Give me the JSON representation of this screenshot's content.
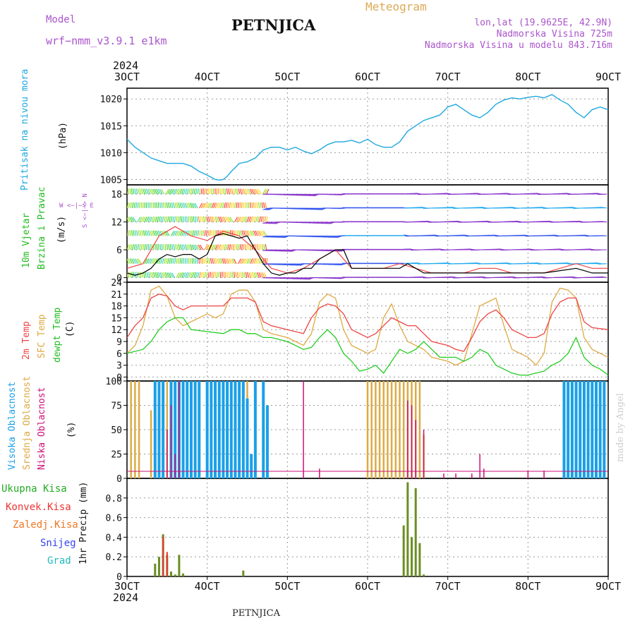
{
  "header": {
    "model_label": "Model",
    "model_name": "wrf−nmm_v3.9.1  e1km",
    "station": "PETNJICA",
    "title": "Meteogram",
    "lonlat": "lon,lat (19.9625E, 42.9N)",
    "altitude": "Nadmorska Visina 725m",
    "model_altitude": "Nadmorska Visina u modelu 843.716m",
    "year": "2024",
    "footer_station": "PETNJICA",
    "watermark": "made by Angel"
  },
  "colors": {
    "pressure": "#1fa8e0",
    "temp2m": "#ee4444",
    "sfc_temp": "#ddaa44",
    "dewpoint": "#22cc22",
    "high_cloud": "#1aa0e8",
    "mid_cloud": "#ddaa44",
    "low_cloud": "#cc1177",
    "total_precip": "#22aa22",
    "conv_precip": "#ee3333",
    "grid_precip": "#ee7722",
    "snow": "#3344ee",
    "graupel": "#22bbbb",
    "gust": "#ee4444",
    "wind_speed": "#000000",
    "magenta_label": "#aa55cc"
  },
  "panels": {
    "pressure": {
      "label": "Pritisak na nivou mora",
      "unit": "(hPa)"
    },
    "wind": {
      "label1": "10m Vjetar",
      "label2": "Brzina i Pravac",
      "unit": "(m/s)",
      "compass_we": "W <−|−> E",
      "compass_ns": "S <−|−> N"
    },
    "temp": {
      "label1": "2m Temp",
      "label2": "SFC Temp",
      "label3": "dewpt Temp",
      "unit": "(C)"
    },
    "cloud": {
      "label1": "Visoka Oblacnost",
      "label2": "Srednja Oblacnost",
      "label3": "Niska Oblacnost",
      "unit": "(%)"
    },
    "precip": {
      "legend": [
        "Ukupna Kisa",
        "Konvek.Kisa",
        "Zaledj.Kisa",
        "Snijeg",
        "Grad"
      ],
      "unit": "1hr Precip (mm)"
    }
  },
  "chart_data": [
    {
      "type": "line",
      "panel": "pressure",
      "xlabel": "",
      "ylabel": "Pritisak na nivou mora (hPa)",
      "x_ticks": [
        "3OCT",
        "4OCT",
        "5OCT",
        "6OCT",
        "7OCT",
        "8OCT",
        "9OCT"
      ],
      "xlim_days": [
        3,
        9
      ],
      "ylim": [
        1004,
        1022
      ],
      "y_ticks": [
        1005,
        1010,
        1015,
        1020
      ],
      "series": [
        {
          "name": "Pritisak na nivou mora",
          "x": [
            3.0,
            3.1,
            3.2,
            3.3,
            3.4,
            3.5,
            3.6,
            3.7,
            3.8,
            3.9,
            4.0,
            4.05,
            4.1,
            4.15,
            4.2,
            4.25,
            4.3,
            4.35,
            4.4,
            4.5,
            4.6,
            4.7,
            4.8,
            4.9,
            5.0,
            5.1,
            5.2,
            5.3,
            5.4,
            5.5,
            5.6,
            5.7,
            5.8,
            5.9,
            6.0,
            6.1,
            6.2,
            6.3,
            6.4,
            6.5,
            6.6,
            6.7,
            6.8,
            6.9,
            7.0,
            7.1,
            7.2,
            7.3,
            7.4,
            7.5,
            7.6,
            7.7,
            7.8,
            7.9,
            8.0,
            8.1,
            8.2,
            8.3,
            8.4,
            8.5,
            8.6,
            8.7,
            8.8,
            8.9,
            9.0
          ],
          "y": [
            1012.5,
            1011,
            1010,
            1009,
            1008.5,
            1008,
            1008,
            1008,
            1007.5,
            1006.5,
            1005.8,
            1005.4,
            1005,
            1004.9,
            1005,
            1005.6,
            1006.5,
            1007.2,
            1008,
            1008.3,
            1009,
            1010.5,
            1011,
            1011,
            1010.5,
            1011,
            1010.3,
            1009.8,
            1010.5,
            1011.5,
            1012,
            1012,
            1012.3,
            1011.8,
            1012.5,
            1011.5,
            1011,
            1011,
            1012,
            1014,
            1015,
            1016,
            1016.5,
            1017,
            1018.5,
            1019,
            1018,
            1017,
            1016.5,
            1017.5,
            1019,
            1019.8,
            1020.2,
            1020,
            1020.3,
            1020.5,
            1020.2,
            1020.8,
            1019.8,
            1019,
            1017.5,
            1016.5,
            1018,
            1018.5,
            1018
          ]
        }
      ]
    },
    {
      "type": "line",
      "panel": "wind",
      "ylabel": "10m Vjetar Brzina i Pravac (m/s)",
      "xlim_days": [
        3,
        9
      ],
      "ylim": [
        -1,
        20
      ],
      "y_ticks": [
        0,
        6,
        12,
        18
      ],
      "series": [
        {
          "name": "speed",
          "x": [
            3.0,
            3.1,
            3.2,
            3.3,
            3.4,
            3.5,
            3.6,
            3.7,
            3.8,
            3.9,
            4.0,
            4.1,
            4.2,
            4.3,
            4.4,
            4.5,
            4.6,
            4.7,
            4.8,
            4.9,
            5.0,
            5.1,
            5.2,
            5.3,
            5.4,
            5.5,
            5.6,
            5.7,
            5.8,
            6.0,
            6.2,
            6.4,
            6.5,
            6.6,
            6.7,
            6.8,
            7.0,
            7.2,
            7.4,
            7.6,
            7.8,
            8.0,
            8.2,
            8.4,
            8.6,
            8.7,
            8.8,
            9.0
          ],
          "y": [
            1,
            0.5,
            1,
            2,
            4,
            5,
            4.5,
            5,
            5,
            4,
            5,
            9,
            9.5,
            9,
            8.5,
            9,
            6,
            3,
            1,
            0.5,
            1,
            1,
            2,
            2,
            4,
            5,
            6,
            6,
            2,
            2,
            2,
            2,
            3,
            2,
            1,
            1,
            1,
            1,
            1,
            1,
            1,
            1,
            1,
            1.5,
            2,
            1.5,
            1,
            1
          ]
        },
        {
          "name": "gust",
          "x": [
            3.0,
            3.2,
            3.4,
            3.6,
            3.8,
            4.0,
            4.2,
            4.4,
            4.6,
            4.8,
            5.0,
            5.2,
            5.4,
            5.6,
            5.8,
            6.0,
            6.2,
            6.4,
            6.6,
            6.8,
            7.0,
            7.2,
            7.4,
            7.6,
            7.8,
            8.0,
            8.2,
            8.4,
            8.6,
            8.8,
            9.0
          ],
          "y": [
            2,
            3,
            9,
            11,
            9,
            8,
            10,
            9,
            6,
            2,
            1,
            2,
            4,
            6,
            2,
            2,
            2,
            3,
            2,
            1,
            1,
            1,
            2,
            2,
            1,
            1,
            1,
            2,
            3,
            2,
            2
          ]
        }
      ]
    },
    {
      "type": "line",
      "panel": "temperature",
      "ylabel": "(C)",
      "xlim_days": [
        3,
        9
      ],
      "ylim": [
        -1,
        24
      ],
      "y_ticks": [
        0,
        3,
        6,
        9,
        12,
        15,
        18,
        21,
        24
      ],
      "series": [
        {
          "name": "2m Temp",
          "x": [
            3.0,
            3.1,
            3.2,
            3.3,
            3.4,
            3.5,
            3.6,
            3.7,
            3.8,
            3.9,
            4.0,
            4.1,
            4.2,
            4.3,
            4.4,
            4.5,
            4.6,
            4.7,
            4.8,
            5.0,
            5.2,
            5.3,
            5.4,
            5.5,
            5.6,
            5.7,
            5.8,
            6.0,
            6.1,
            6.2,
            6.3,
            6.4,
            6.5,
            6.6,
            6.7,
            6.8,
            7.0,
            7.1,
            7.2,
            7.3,
            7.4,
            7.5,
            7.6,
            7.7,
            7.8,
            8.0,
            8.1,
            8.2,
            8.3,
            8.4,
            8.5,
            8.6,
            8.7,
            8.8,
            9.0
          ],
          "y": [
            10,
            13,
            15,
            20,
            21,
            20.5,
            18,
            17,
            18,
            18,
            18,
            18,
            18,
            20,
            20,
            20,
            19,
            14,
            13,
            12,
            11,
            15,
            17.5,
            18.5,
            18,
            16,
            12,
            10,
            11,
            13,
            15,
            14,
            13,
            13,
            11,
            9,
            8,
            7,
            6.5,
            10,
            14,
            16,
            17,
            15,
            12,
            10,
            10,
            11,
            16,
            19,
            20,
            20,
            14,
            12.5,
            12
          ]
        },
        {
          "name": "SFC Temp",
          "x": [
            3.0,
            3.1,
            3.2,
            3.3,
            3.4,
            3.5,
            3.6,
            3.7,
            3.8,
            3.9,
            4.0,
            4.1,
            4.2,
            4.3,
            4.4,
            4.5,
            4.6,
            4.7,
            4.8,
            5.0,
            5.2,
            5.3,
            5.4,
            5.5,
            5.6,
            5.7,
            5.8,
            6.0,
            6.1,
            6.2,
            6.3,
            6.4,
            6.5,
            6.6,
            6.7,
            6.8,
            7.0,
            7.1,
            7.2,
            7.3,
            7.4,
            7.5,
            7.6,
            7.7,
            7.8,
            8.0,
            8.1,
            8.2,
            8.3,
            8.4,
            8.5,
            8.6,
            8.7,
            8.8,
            9.0
          ],
          "y": [
            6,
            8,
            13,
            22,
            23,
            20.5,
            15,
            13,
            14,
            15,
            16,
            15,
            16,
            21,
            22,
            22,
            19,
            12,
            11,
            10,
            8,
            11,
            19,
            21,
            20,
            12,
            8,
            6,
            7,
            15,
            18.5,
            13,
            9,
            8,
            7,
            5,
            4,
            3,
            4,
            11,
            18,
            19,
            20,
            13,
            7,
            5,
            3,
            6,
            19,
            22.5,
            22,
            20,
            10,
            7,
            5
          ]
        },
        {
          "name": "dewpt Temp",
          "x": [
            3.0,
            3.2,
            3.3,
            3.4,
            3.5,
            3.6,
            3.7,
            3.8,
            4.0,
            4.2,
            4.3,
            4.4,
            4.5,
            4.6,
            4.7,
            4.8,
            5.0,
            5.1,
            5.2,
            5.3,
            5.4,
            5.5,
            5.6,
            5.7,
            5.8,
            5.9,
            6.0,
            6.1,
            6.2,
            6.3,
            6.4,
            6.5,
            6.6,
            6.7,
            6.8,
            6.9,
            7.0,
            7.1,
            7.2,
            7.3,
            7.4,
            7.5,
            7.6,
            7.7,
            7.8,
            7.9,
            8.0,
            8.1,
            8.2,
            8.3,
            8.4,
            8.5,
            8.6,
            8.7,
            8.8,
            8.9,
            9.0
          ],
          "y": [
            6,
            7,
            9,
            12,
            14,
            15,
            15,
            12,
            11.5,
            11,
            12,
            12,
            11,
            11,
            10,
            10,
            9,
            8,
            7,
            7.5,
            10,
            12,
            10,
            6,
            4,
            1.5,
            2,
            3,
            1,
            4,
            7,
            6,
            7,
            9,
            7,
            5,
            5,
            5,
            4,
            5,
            7,
            6,
            3,
            2,
            1,
            0.5,
            0.5,
            1,
            1.5,
            3,
            4,
            6,
            10,
            5,
            3,
            2,
            0.5
          ]
        }
      ]
    },
    {
      "type": "bar",
      "panel": "cloud",
      "ylabel": "(%)",
      "xlim_days": [
        3,
        9
      ],
      "ylim": [
        0,
        100
      ],
      "y_ticks": [
        0,
        25,
        50,
        75,
        100
      ],
      "series": [
        {
          "name": "Visoka Oblacnost",
          "x": [
            3.35,
            3.4,
            3.45,
            3.55,
            3.6,
            3.65,
            3.7,
            3.75,
            3.8,
            3.85,
            3.9,
            4.0,
            4.05,
            4.1,
            4.15,
            4.2,
            4.25,
            4.3,
            4.35,
            4.4,
            4.45,
            4.5,
            4.55,
            4.6,
            4.65,
            4.7,
            4.75,
            4.85,
            4.95,
            8.45,
            8.5,
            8.55,
            8.6,
            8.65,
            8.7,
            8.75,
            8.8,
            8.85,
            8.9,
            8.95
          ],
          "y": [
            100,
            100,
            100,
            100,
            100,
            100,
            100,
            100,
            100,
            100,
            100,
            100,
            100,
            100,
            100,
            100,
            100,
            100,
            100,
            100,
            100,
            82,
            25,
            100,
            0,
            100,
            75,
            0,
            0,
            100,
            100,
            100,
            100,
            100,
            100,
            100,
            100,
            100,
            100,
            100
          ]
        },
        {
          "name": "Srednja Oblacnost",
          "x": [
            3.05,
            3.1,
            3.15,
            3.3,
            3.35,
            3.4,
            3.5,
            3.6,
            3.7,
            3.75,
            3.8,
            3.85,
            3.9,
            4.0,
            4.05,
            4.2,
            4.3,
            4.35,
            4.4,
            4.5,
            6.0,
            6.05,
            6.1,
            6.15,
            6.2,
            6.25,
            6.3,
            6.35,
            6.4,
            6.45,
            6.5,
            6.55,
            6.6,
            6.65,
            6.7
          ],
          "y": [
            100,
            100,
            100,
            70,
            100,
            100,
            100,
            100,
            100,
            100,
            100,
            100,
            100,
            100,
            100,
            100,
            25,
            100,
            100,
            100,
            100,
            100,
            100,
            100,
            100,
            100,
            100,
            100,
            100,
            100,
            100,
            100,
            100,
            100,
            45
          ]
        },
        {
          "name": "Niska Oblacnost",
          "x": [
            3.5,
            3.55,
            3.6,
            3.65,
            5.2,
            5.4,
            6.5,
            6.55,
            6.6,
            6.7,
            6.95,
            7.1,
            7.3,
            7.4,
            7.45,
            8.0,
            8.2
          ],
          "y": [
            50,
            75,
            25,
            100,
            100,
            10,
            80,
            75,
            60,
            50,
            5,
            5,
            5,
            25,
            10,
            8,
            8
          ]
        }
      ]
    },
    {
      "type": "bar",
      "panel": "precip",
      "ylabel": "1hr Precip (mm)",
      "xlim_days": [
        3,
        9
      ],
      "ylim": [
        0,
        1.0
      ],
      "y_ticks": [
        0,
        0.2,
        0.4,
        0.6,
        0.8
      ],
      "x_ticks": [
        "3OCT",
        "4OCT",
        "5OCT",
        "6OCT",
        "7OCT",
        "8OCT",
        "9OCT"
      ],
      "series": [
        {
          "name": "Ukupna Kisa",
          "x": [
            3.35,
            3.4,
            3.45,
            3.5,
            3.55,
            3.6,
            3.65,
            3.7,
            4.45,
            6.45,
            6.5,
            6.55,
            6.6,
            6.65,
            6.7
          ],
          "y": [
            0.13,
            0.2,
            0.43,
            0.22,
            0.05,
            0.02,
            0.22,
            0.03,
            0.06,
            0.52,
            0.96,
            0.4,
            0.9,
            0.34,
            0.02
          ]
        },
        {
          "name": "Konvek.Kisa",
          "x": [
            3.45,
            3.5
          ],
          "y": [
            0.4,
            0.25
          ]
        }
      ]
    }
  ]
}
